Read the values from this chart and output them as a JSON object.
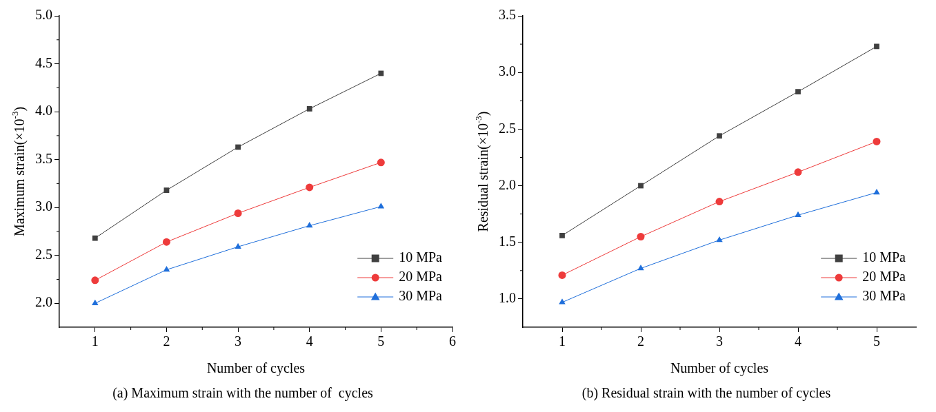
{
  "chart_data": [
    {
      "type": "line",
      "title": "(a) Maximum strain with the number of  cycles",
      "xlabel": "Number of cycles",
      "ylabel": "Maximum strain(×10$^{-3}$)",
      "x": [
        1,
        2,
        3,
        4,
        5
      ],
      "xlim": [
        0.5,
        6
      ],
      "xticks": [
        1,
        2,
        3,
        4,
        5,
        6
      ],
      "ylim": [
        1.75,
        5.0
      ],
      "yticks": [
        {
          "value": 2.0,
          "label": "2.0"
        },
        2.5,
        {
          "value": 3.0,
          "label": "3.0"
        },
        3.5,
        {
          "value": 4.0,
          "label": "4.0"
        },
        4.5,
        {
          "value": 5.0,
          "label": "5.0"
        }
      ],
      "grid": false,
      "legend": "bottom right",
      "series": [
        {
          "name": "10 MPa",
          "color": "#404040",
          "marker": "square",
          "values": [
            2.68,
            3.18,
            3.63,
            4.03,
            4.4
          ]
        },
        {
          "name": "20 MPa",
          "color": "#ee3b3b",
          "marker": "circle",
          "values": [
            2.24,
            2.64,
            2.94,
            3.21,
            3.47
          ]
        },
        {
          "name": "30 MPa",
          "color": "#1f6fdb",
          "marker": "triangle",
          "values": [
            2.0,
            2.35,
            2.59,
            2.81,
            3.01
          ]
        }
      ]
    },
    {
      "type": "line",
      "title": "(b) Residual strain with the number of cycles",
      "xlabel": "Number of cycles",
      "ylabel": "Residual strain(×10$^{-3}$)",
      "x": [
        1,
        2,
        3,
        4,
        5
      ],
      "xlim": [
        0.5,
        5.5
      ],
      "xticks": [
        1,
        2,
        3,
        4,
        5
      ],
      "ylim": [
        0.75,
        3.5
      ],
      "yticks": [
        {
          "value": 1.0,
          "label": "1.0"
        },
        1.5,
        {
          "value": 2.0,
          "label": "2.0"
        },
        2.5,
        {
          "value": 3.0,
          "label": "3.0"
        },
        3.5
      ],
      "grid": false,
      "legend": "bottom right",
      "series": [
        {
          "name": "10 MPa",
          "color": "#404040",
          "marker": "square",
          "values": [
            1.56,
            2.0,
            2.44,
            2.83,
            3.23
          ]
        },
        {
          "name": "20 MPa",
          "color": "#ee3b3b",
          "marker": "circle",
          "values": [
            1.21,
            1.55,
            1.86,
            2.12,
            2.39
          ]
        },
        {
          "name": "30 MPa",
          "color": "#1f6fdb",
          "marker": "triangle",
          "values": [
            0.97,
            1.27,
            1.52,
            1.74,
            1.94
          ]
        }
      ]
    }
  ]
}
